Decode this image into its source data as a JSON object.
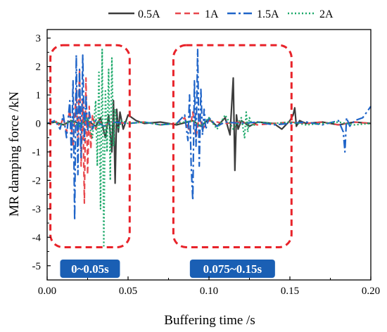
{
  "chart_data": {
    "type": "line",
    "xlabel": "Buffering time /s",
    "ylabel": "MR damping force /kN",
    "xlim": [
      0,
      0.2
    ],
    "ylim": [
      -5.5,
      3.3
    ],
    "xticks": [
      0.0,
      0.05,
      0.1,
      0.15,
      0.2
    ],
    "xtick_labels": [
      "0.00",
      "0.05",
      "0.10",
      "0.15",
      "0.20"
    ],
    "yticks": [
      -5,
      -4,
      -3,
      -2,
      -1,
      0,
      1,
      2,
      3
    ],
    "ytick_labels": [
      "-5",
      "-4",
      "-3",
      "-2",
      "-1",
      "0",
      "1",
      "2",
      "3"
    ],
    "legend_position": "top",
    "series": [
      {
        "name": "0.5A",
        "color": "#3c3c3c",
        "dash": "solid",
        "x": [
          0.0,
          0.005,
          0.01,
          0.015,
          0.02,
          0.025,
          0.03,
          0.033,
          0.036,
          0.038,
          0.04,
          0.041,
          0.042,
          0.043,
          0.044,
          0.045,
          0.047,
          0.05,
          0.055,
          0.06,
          0.07,
          0.08,
          0.09,
          0.095,
          0.1,
          0.105,
          0.11,
          0.113,
          0.115,
          0.116,
          0.117,
          0.118,
          0.12,
          0.125,
          0.13,
          0.14,
          0.145,
          0.15,
          0.152,
          0.153,
          0.154,
          0.156,
          0.16,
          0.17,
          0.18,
          0.19,
          0.2
        ],
        "y": [
          0.0,
          0.05,
          -0.05,
          0.1,
          0.0,
          0.1,
          -0.1,
          0.2,
          -0.5,
          0.3,
          -1.0,
          0.8,
          -2.1,
          0.5,
          -0.3,
          0.4,
          -0.2,
          0.3,
          0.1,
          0.0,
          0.05,
          -0.05,
          0.1,
          -0.1,
          0.15,
          -0.1,
          0.2,
          -0.4,
          1.6,
          -1.65,
          0.3,
          -0.2,
          0.1,
          -0.1,
          0.05,
          0.0,
          -0.2,
          0.1,
          0.3,
          0.55,
          -0.1,
          0.1,
          0.0,
          0.05,
          -0.05,
          0.05,
          0.0
        ]
      },
      {
        "name": "1A",
        "color": "#e8474c",
        "dash": "8,5",
        "x": [
          0.0,
          0.005,
          0.008,
          0.01,
          0.012,
          0.014,
          0.016,
          0.018,
          0.019,
          0.02,
          0.021,
          0.022,
          0.023,
          0.024,
          0.025,
          0.026,
          0.027,
          0.028,
          0.03,
          0.032,
          0.035,
          0.04,
          0.05,
          0.06,
          0.07,
          0.08,
          0.085,
          0.088,
          0.09,
          0.092,
          0.094,
          0.096,
          0.1,
          0.11,
          0.12,
          0.13,
          0.14,
          0.15,
          0.16,
          0.17,
          0.18,
          0.19,
          0.2
        ],
        "y": [
          0.0,
          0.1,
          -0.1,
          0.2,
          -0.3,
          0.5,
          -0.8,
          1.2,
          -0.5,
          1.9,
          -1.5,
          0.9,
          -2.8,
          1.6,
          -1.8,
          0.6,
          -0.9,
          0.3,
          -0.2,
          0.1,
          -0.1,
          0.05,
          0.0,
          0.05,
          -0.05,
          0.0,
          0.2,
          -0.3,
          0.4,
          -0.5,
          0.3,
          -0.2,
          0.1,
          0.0,
          0.05,
          -0.05,
          0.0,
          0.05,
          0.0,
          0.05,
          -0.05,
          0.05,
          0.0
        ]
      },
      {
        "name": "1.5A",
        "color": "#1f64c8",
        "dash": "12,4,3,4",
        "x": [
          0.0,
          0.005,
          0.008,
          0.01,
          0.012,
          0.014,
          0.015,
          0.016,
          0.017,
          0.018,
          0.019,
          0.02,
          0.021,
          0.022,
          0.023,
          0.024,
          0.025,
          0.026,
          0.028,
          0.03,
          0.035,
          0.04,
          0.05,
          0.06,
          0.07,
          0.08,
          0.085,
          0.087,
          0.088,
          0.089,
          0.09,
          0.091,
          0.092,
          0.093,
          0.094,
          0.095,
          0.096,
          0.097,
          0.098,
          0.1,
          0.105,
          0.11,
          0.12,
          0.13,
          0.14,
          0.15,
          0.16,
          0.17,
          0.18,
          0.183,
          0.184,
          0.185,
          0.187,
          0.19,
          0.195,
          0.2
        ],
        "y": [
          0.0,
          0.1,
          -0.2,
          0.3,
          -0.5,
          0.8,
          -1.2,
          1.5,
          -3.4,
          2.4,
          -1.8,
          1.9,
          -1.2,
          2.4,
          -0.6,
          1.0,
          -0.3,
          0.4,
          -0.2,
          0.1,
          -0.1,
          0.05,
          0.0,
          0.05,
          -0.05,
          0.0,
          0.3,
          -0.6,
          1.0,
          -1.5,
          -2.7,
          1.5,
          -0.8,
          2.6,
          -1.5,
          1.2,
          -0.4,
          0.5,
          -0.2,
          0.2,
          -0.1,
          0.05,
          0.0,
          0.05,
          -0.05,
          0.0,
          0.05,
          -0.05,
          0.1,
          -0.3,
          -1.0,
          0.2,
          -0.1,
          0.1,
          0.2,
          0.6
        ]
      },
      {
        "name": "2A",
        "color": "#1aa868",
        "dash": "2,3",
        "x": [
          0.0,
          0.005,
          0.01,
          0.015,
          0.02,
          0.025,
          0.028,
          0.03,
          0.031,
          0.032,
          0.033,
          0.034,
          0.035,
          0.036,
          0.037,
          0.038,
          0.039,
          0.04,
          0.041,
          0.042,
          0.044,
          0.046,
          0.05,
          0.06,
          0.07,
          0.08,
          0.09,
          0.095,
          0.1,
          0.105,
          0.11,
          0.115,
          0.12,
          0.122,
          0.123,
          0.124,
          0.125,
          0.127,
          0.13,
          0.14,
          0.15,
          0.16,
          0.17,
          0.18,
          0.19,
          0.2
        ],
        "y": [
          0.0,
          0.05,
          -0.05,
          0.1,
          -0.1,
          0.2,
          -0.5,
          0.8,
          -1.5,
          1.8,
          -3.0,
          2.6,
          -4.3,
          1.2,
          -1.0,
          1.9,
          -2.0,
          2.3,
          -0.8,
          0.5,
          -0.2,
          0.1,
          0.0,
          0.05,
          -0.05,
          0.0,
          0.1,
          -0.1,
          0.2,
          -0.2,
          0.3,
          -0.2,
          0.2,
          -0.5,
          0.4,
          -0.3,
          0.2,
          -0.1,
          0.05,
          0.0,
          0.05,
          -0.05,
          0.0,
          0.05,
          -0.05,
          0.0
        ]
      }
    ],
    "annotations": [
      {
        "label": "0~0.05s",
        "x_range": [
          0.002,
          0.051
        ],
        "y_range": [
          -4.35,
          2.75
        ]
      },
      {
        "label": "0.075~0.15s",
        "x_range": [
          0.078,
          0.151
        ],
        "y_range": [
          -4.35,
          2.75
        ]
      }
    ],
    "annotation_style": {
      "box_color": "#e8232a",
      "badge_color": "#1a5fb4"
    }
  }
}
